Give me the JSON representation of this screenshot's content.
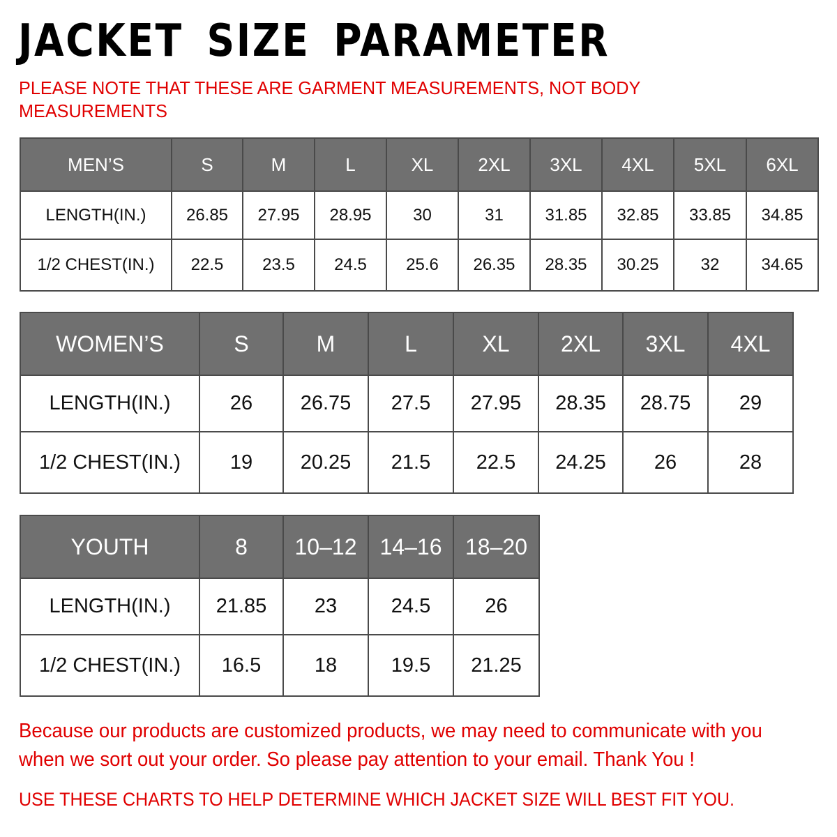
{
  "title": "JACKET SIZE PARAMETER",
  "note": "PLEASE NOTE THAT THESE ARE GARMENT MEASUREMENTS, NOT BODY MEASUREMENTS",
  "colors": {
    "header_bg": "#707070",
    "accent_red": "#e00000"
  },
  "tables": {
    "men": {
      "header": [
        "MEN’S",
        "S",
        "M",
        "L",
        "XL",
        "2XL",
        "3XL",
        "4XL",
        "5XL",
        "6XL"
      ],
      "rows": [
        [
          "LENGTH(IN.)",
          "26.85",
          "27.95",
          "28.95",
          "30",
          "31",
          "31.85",
          "32.85",
          "33.85",
          "34.85"
        ],
        [
          "1/2 CHEST(IN.)",
          "22.5",
          "23.5",
          "24.5",
          "25.6",
          "26.35",
          "28.35",
          "30.25",
          "32",
          "34.65"
        ]
      ]
    },
    "women": {
      "header": [
        "WOMEN’S",
        "S",
        "M",
        "L",
        "XL",
        "2XL",
        "3XL",
        "4XL"
      ],
      "rows": [
        [
          "LENGTH(IN.)",
          "26",
          "26.75",
          "27.5",
          "27.95",
          "28.35",
          "28.75",
          "29"
        ],
        [
          "1/2 CHEST(IN.)",
          "19",
          "20.25",
          "21.5",
          "22.5",
          "24.25",
          "26",
          "28"
        ]
      ]
    },
    "youth": {
      "header": [
        "YOUTH",
        "8",
        "10–12",
        "14–16",
        "18–20"
      ],
      "rows": [
        [
          "LENGTH(IN.)",
          "21.85",
          "23",
          "24.5",
          "26"
        ],
        [
          "1/2 CHEST(IN.)",
          "16.5",
          "18",
          "19.5",
          "21.25"
        ]
      ]
    }
  },
  "footer": {
    "message": "Because our products are customized products, we may need to communicate with you when we sort out your order. So please pay attention to your email. Thank You !",
    "advice": "USE THESE CHARTS TO HELP DETERMINE WHICH JACKET SIZE WILL BEST FIT YOU."
  }
}
